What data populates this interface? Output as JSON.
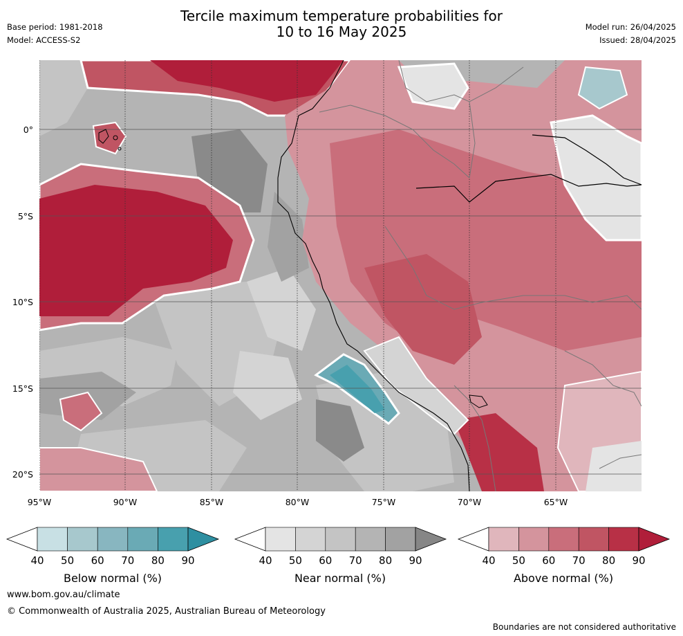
{
  "header": {
    "base_period": "Base period: 1981-2018",
    "model": "Model: ACCESS-S2",
    "title_line1": "Tercile maximum temperature probabilities for",
    "title_line2": "10 to 16 May 2025",
    "model_run": "Model run: 26/04/2025",
    "issued": "Issued: 28/04/2025"
  },
  "map": {
    "lat_labels": [
      "0°",
      "5°S",
      "10°S",
      "15°S",
      "20°S"
    ],
    "lon_labels": [
      "95°W",
      "90°W",
      "85°W",
      "80°W",
      "75°W",
      "70°W",
      "65°W"
    ]
  },
  "legend": {
    "below": {
      "label": "Below normal (%)",
      "ticks": [
        "40",
        "50",
        "60",
        "70",
        "80",
        "90"
      ],
      "colors": [
        "#ffffff",
        "#c8e0e4",
        "#a7c8cd",
        "#88b6c0",
        "#6aaab5",
        "#48a0ae",
        "#2e8fa1"
      ]
    },
    "near": {
      "label": "Near normal (%)",
      "ticks": [
        "40",
        "50",
        "60",
        "70",
        "80",
        "90"
      ],
      "colors": [
        "#ffffff",
        "#e4e4e4",
        "#d4d4d4",
        "#c4c4c4",
        "#b4b4b4",
        "#a2a2a2",
        "#868686"
      ]
    },
    "above": {
      "label": "Above normal (%)",
      "ticks": [
        "40",
        "50",
        "60",
        "70",
        "80",
        "90"
      ],
      "colors": [
        "#ffffff",
        "#e0b6bc",
        "#d4949d",
        "#c96e7b",
        "#c05563",
        "#b83046",
        "#b01e3a"
      ]
    }
  },
  "footer": {
    "url": "www.bom.gov.au/climate",
    "copyright": "© Commonwealth of Australia 2025, Australian Bureau of Meteorology",
    "disclaimer": "Boundaries are not considered authoritative"
  }
}
